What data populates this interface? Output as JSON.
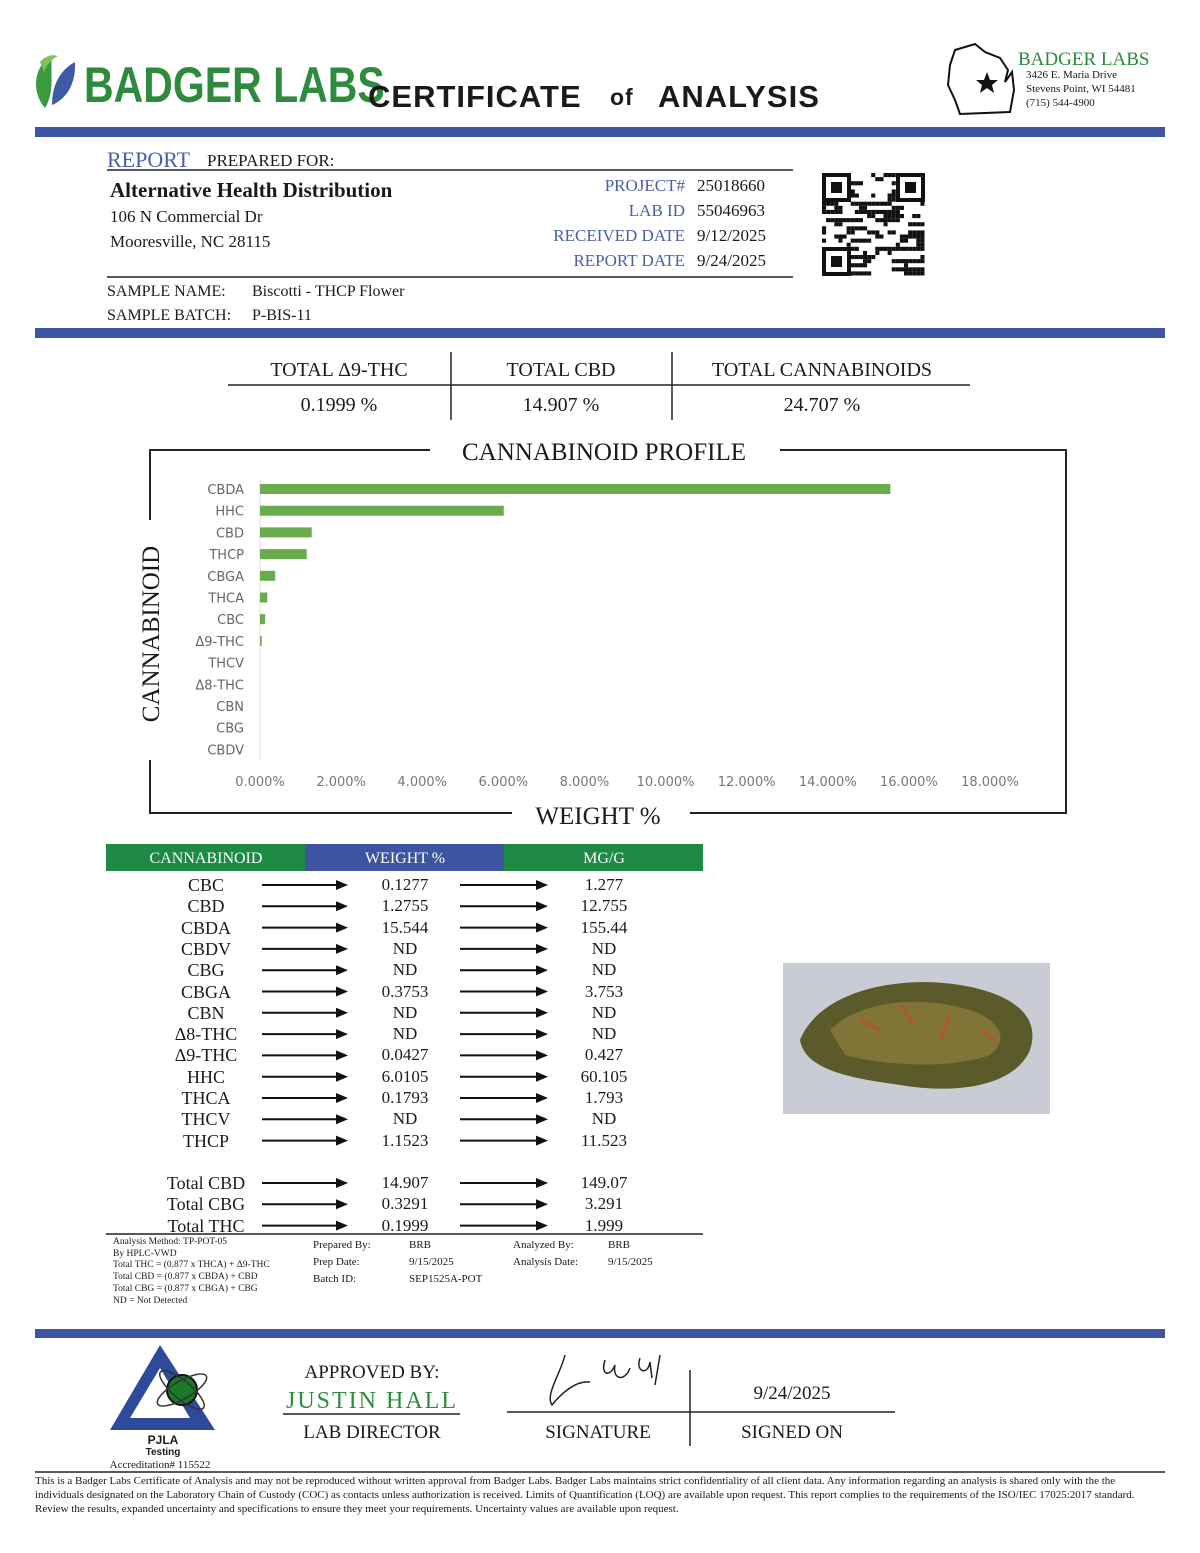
{
  "header": {
    "brand": "BADGER LABS",
    "title": [
      "CERTIFICATE",
      "of",
      "ANALYSIS"
    ],
    "lab_name": "BADGER LABS",
    "lab_address": [
      "3426 E. Maria Drive",
      "Stevens Point, WI 54481",
      "(715) 544-4900"
    ]
  },
  "report": {
    "label_report": "REPORT",
    "label_prepared": "PREPARED FOR:",
    "client": "Alternative Health Distribution",
    "address": [
      "106 N Commercial Dr",
      "Mooresville, NC 28115"
    ],
    "fields": [
      {
        "label": "PROJECT#",
        "value": "25018660"
      },
      {
        "label": "LAB ID",
        "value": "55046963"
      },
      {
        "label": "RECEIVED DATE",
        "value": "9/12/2025"
      },
      {
        "label": "REPORT DATE",
        "value": "9/24/2025"
      }
    ]
  },
  "sample": [
    {
      "label": "SAMPLE NAME:",
      "value": "Biscotti - THCP Flower"
    },
    {
      "label": "SAMPLE BATCH:",
      "value": "P-BIS-11"
    }
  ],
  "totals": {
    "headers": [
      "TOTAL Δ9-THC",
      "TOTAL CBD",
      "TOTAL CANNABINOIDS"
    ],
    "values": [
      "0.1999 %",
      "14.907 %",
      "24.707 %"
    ]
  },
  "chart_data": {
    "type": "bar",
    "orientation": "horizontal",
    "title": "CANNABINOID PROFILE",
    "x_label": "WEIGHT %",
    "y_label": "CANNABINOID",
    "color": "#6aab4e",
    "categories": [
      "CBDA",
      "HHC",
      "CBD",
      "THCP",
      "CBGA",
      "THCA",
      "CBC",
      "Δ9-THC",
      "THCV",
      "Δ8-THC",
      "CBN",
      "CBG",
      "CBDV"
    ],
    "values": [
      15.544,
      6.0105,
      1.2755,
      1.1523,
      0.3753,
      0.1793,
      0.1277,
      0.0427,
      0,
      0,
      0,
      0,
      0
    ],
    "xlim": [
      0,
      18
    ],
    "xticks": [
      {
        "value": 0,
        "label": "0.000%"
      },
      {
        "value": 2,
        "label": "2.000%"
      },
      {
        "value": 4,
        "label": "4.000%"
      },
      {
        "value": 6,
        "label": "6.000%"
      },
      {
        "value": 8,
        "label": "8.000%"
      },
      {
        "value": 10,
        "label": "10.000%"
      },
      {
        "value": 12,
        "label": "12.000%"
      },
      {
        "value": 14,
        "label": "14.000%"
      },
      {
        "value": 16,
        "label": "16.000%"
      },
      {
        "value": 18,
        "label": "18.000%"
      }
    ]
  },
  "table": {
    "headers": [
      "CANNABINOID",
      "WEIGHT %",
      "MG/G"
    ],
    "rows": [
      [
        "CBC",
        "0.1277",
        "1.277"
      ],
      [
        "CBD",
        "1.2755",
        "12.755"
      ],
      [
        "CBDA",
        "15.544",
        "155.44"
      ],
      [
        "CBDV",
        "ND",
        "ND"
      ],
      [
        "CBG",
        "ND",
        "ND"
      ],
      [
        "CBGA",
        "0.3753",
        "3.753"
      ],
      [
        "CBN",
        "ND",
        "ND"
      ],
      [
        "Δ8-THC",
        "ND",
        "ND"
      ],
      [
        "Δ9-THC",
        "0.0427",
        "0.427"
      ],
      [
        "HHC",
        "6.0105",
        "60.105"
      ],
      [
        "THCA",
        "0.1793",
        "1.793"
      ],
      [
        "THCV",
        "ND",
        "ND"
      ],
      [
        "THCP",
        "1.1523",
        "11.523"
      ]
    ],
    "total_rows": [
      [
        "Total CBD",
        "14.907",
        "149.07"
      ],
      [
        "Total CBG",
        "0.3291",
        "3.291"
      ],
      [
        "Total THC",
        "0.1999",
        "1.999"
      ]
    ]
  },
  "method": [
    "Analysis Method: TP-POT-05",
    "By HPLC-VWD",
    "Total THC = (0.877 x  THCA) + Δ9-THC",
    "Total CBD = (0.877 x  CBDA) + CBD",
    "Total CBG = (0.877 x  CBGA) + CBG",
    "ND = Not Detected"
  ],
  "prep": [
    {
      "label": "Prepared By:",
      "value": "BRB"
    },
    {
      "label": "Prep Date:",
      "value": "9/15/2025"
    },
    {
      "label": "Batch ID:",
      "value": "SEP1525A-POT"
    }
  ],
  "analysis": [
    {
      "label": "Analyzed By:",
      "value": "BRB"
    },
    {
      "label": "Analysis Date:",
      "value": "9/15/2025"
    }
  ],
  "accreditation": {
    "name": "PJLA",
    "type": "Testing",
    "number": "Accreditation# 115522"
  },
  "approval": {
    "approved_by": "APPROVED BY:",
    "name": "JUSTIN HALL",
    "role": "LAB DIRECTOR",
    "signature_label": "SIGNATURE",
    "date": "9/24/2025",
    "signed_on_label": "SIGNED ON"
  },
  "footer": "This is a Badger Labs Certificate of Analysis and may not be reproduced without written approval from Badger Labs. Badger Labs maintains strict confidentiality of all client data. Any information regarding an analysis is shared only with the the individuals designated on the Laboratory Chain of Custody (COC) as contacts unless authorization is received. Limits of Quantification (LOQ) are available upon request. This report complies to the requirements of the ISO/IEC 17025:2017 standard. Review the results, expanded uncertainty and specifications to ensure they meet your requirements. Uncertainty values are available upon request."
}
